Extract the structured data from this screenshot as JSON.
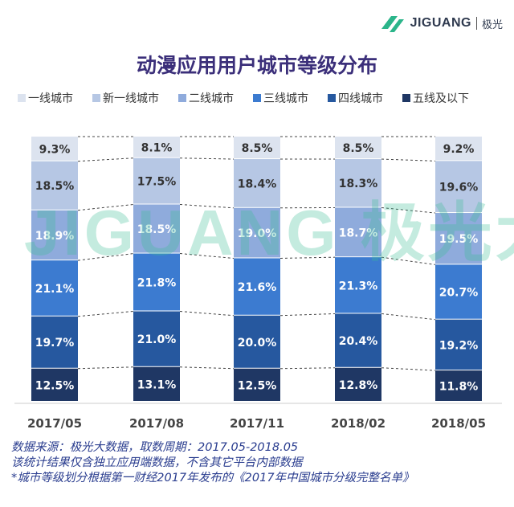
{
  "brand": {
    "name": "JIGUANG",
    "name_cn": "极光",
    "watermark": "JIGUANG 极光大数据"
  },
  "chart_data": {
    "type": "bar",
    "stacked": true,
    "title": "动漫应用用户城市等级分布",
    "categories": [
      "2017/05",
      "2017/08",
      "2017/11",
      "2018/02",
      "2018/05"
    ],
    "unit": "%",
    "ylim": [
      0,
      100
    ],
    "legend_position": "top",
    "series": [
      {
        "name": "一线城市",
        "color": "#dce3ef",
        "label_color": "#333333",
        "values": [
          9.3,
          8.1,
          8.5,
          8.5,
          9.2
        ]
      },
      {
        "name": "新一线城市",
        "color": "#b6c7e4",
        "label_color": "#333333",
        "values": [
          18.5,
          17.5,
          18.4,
          18.3,
          19.6
        ]
      },
      {
        "name": "二线城市",
        "color": "#8fabdc",
        "label_color": "#ffffff",
        "values": [
          18.9,
          18.5,
          19.0,
          18.7,
          19.5
        ]
      },
      {
        "name": "三线城市",
        "color": "#3c7bd0",
        "label_color": "#ffffff",
        "values": [
          21.1,
          21.8,
          21.6,
          21.3,
          20.7
        ]
      },
      {
        "name": "四线城市",
        "color": "#26589f",
        "label_color": "#ffffff",
        "values": [
          19.7,
          21.0,
          20.0,
          20.4,
          19.2
        ]
      },
      {
        "name": "五线及以下",
        "color": "#1f3764",
        "label_color": "#ffffff",
        "values": [
          12.5,
          13.1,
          12.5,
          12.8,
          11.8
        ]
      }
    ]
  },
  "footnotes": [
    "数据来源：极光大数据，取数周期：2017.05-2018.05",
    "该统计结果仅含独立应用端数据，不含其它平台内部数据",
    "*城市等级划分根据第一财经2017年发布的《2017年中国城市分级完整名单》"
  ]
}
